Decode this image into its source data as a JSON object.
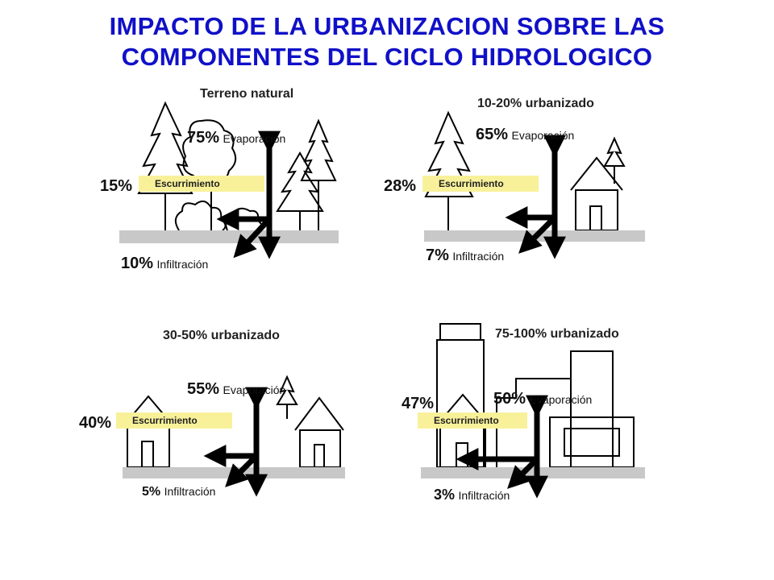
{
  "title": {
    "line1": "IMPACTO DE LA URBANIZACION SOBRE LAS",
    "line2": "COMPONENTES DEL CICLO HIDROLOGICO"
  },
  "panels": [
    {
      "title": "Terreno natural",
      "evaporation": {
        "percent": "75%",
        "label": "Evaporación"
      },
      "runoff": {
        "percent": "15%",
        "label": "Escurrimiento"
      },
      "infiltration": {
        "percent": "10%",
        "label": "Infiltración"
      }
    },
    {
      "title": "10-20% urbanizado",
      "evaporation": {
        "percent": "65%",
        "label": "Evaporación"
      },
      "runoff": {
        "percent": "28%",
        "label": "Escurrimiento"
      },
      "infiltration": {
        "percent": "7%",
        "label": "Infiltración"
      }
    },
    {
      "title": "30-50% urbanizado",
      "evaporation": {
        "percent": "55%",
        "label": "Evaporación"
      },
      "runoff": {
        "percent": "40%",
        "label": "Escurrimiento"
      },
      "infiltration": {
        "percent": "5%",
        "label": "Infiltración"
      }
    },
    {
      "title": "75-100% urbanizado",
      "evaporation": {
        "percent": "50%",
        "label": "Evaporación"
      },
      "runoff": {
        "percent": "47%",
        "label": "Escurrimiento"
      },
      "infiltration": {
        "percent": "3%",
        "label": "Infiltración"
      }
    }
  ],
  "colors": {
    "title": "#1010c8",
    "badge": "#f8f19a",
    "ground": "#c8c8c8",
    "arrow": "#000000"
  }
}
